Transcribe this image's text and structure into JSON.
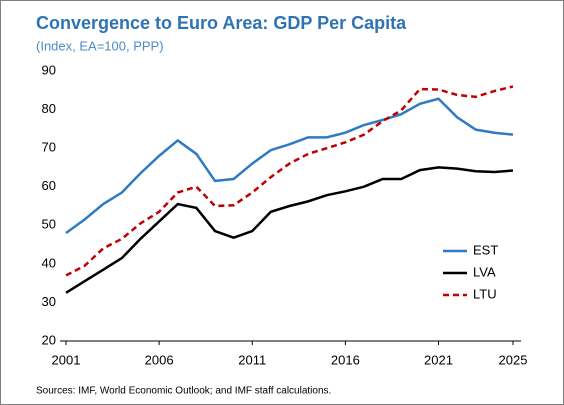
{
  "chart_data": {
    "type": "line",
    "title": "Convergence to Euro Area: GDP Per Capita",
    "subtitle": "(Index, EA=100, PPP)",
    "source": "Sources: IMF, World Economic Outlook; and IMF staff calculations.",
    "x": [
      2001,
      2002,
      2003,
      2004,
      2005,
      2006,
      2007,
      2008,
      2009,
      2010,
      2011,
      2012,
      2013,
      2014,
      2015,
      2016,
      2017,
      2018,
      2019,
      2020,
      2021,
      2022,
      2023,
      2024,
      2025
    ],
    "series": [
      {
        "name": "EST",
        "color": "#2e7bc4",
        "linestyle": "solid",
        "values": [
          48,
          51.5,
          55.5,
          58.5,
          63.5,
          68,
          72,
          68.5,
          61.5,
          62,
          66,
          69.5,
          71,
          72.8,
          72.8,
          74,
          76,
          77.3,
          78.8,
          81.5,
          82.8,
          78,
          74.8,
          74,
          73.5
        ]
      },
      {
        "name": "LVA",
        "color": "#000000",
        "linestyle": "solid",
        "values": [
          32.5,
          35.5,
          38.5,
          41.5,
          46.5,
          51,
          55.5,
          54.5,
          48.5,
          46.8,
          48.5,
          53.5,
          55,
          56.2,
          57.8,
          58.8,
          60,
          62,
          62,
          64.3,
          65,
          64.7,
          64,
          63.8,
          64.2
        ]
      },
      {
        "name": "LTU",
        "color": "#c00000",
        "linestyle": "dashed",
        "values": [
          37,
          39.5,
          44,
          46.5,
          50.5,
          53.5,
          58.5,
          60,
          55,
          55.2,
          58.5,
          62.5,
          66,
          68.5,
          70,
          71.5,
          73.5,
          77,
          79.8,
          85.3,
          85.2,
          83.8,
          83.3,
          84.8,
          86
        ]
      }
    ],
    "xlim": [
      2001,
      2025
    ],
    "xticks": [
      2001,
      2006,
      2011,
      2016,
      2021,
      2025
    ],
    "ylim": [
      20,
      90
    ],
    "yticks": [
      20,
      30,
      40,
      50,
      60,
      70,
      80,
      90
    ],
    "grid": false,
    "legend": "lower right"
  }
}
